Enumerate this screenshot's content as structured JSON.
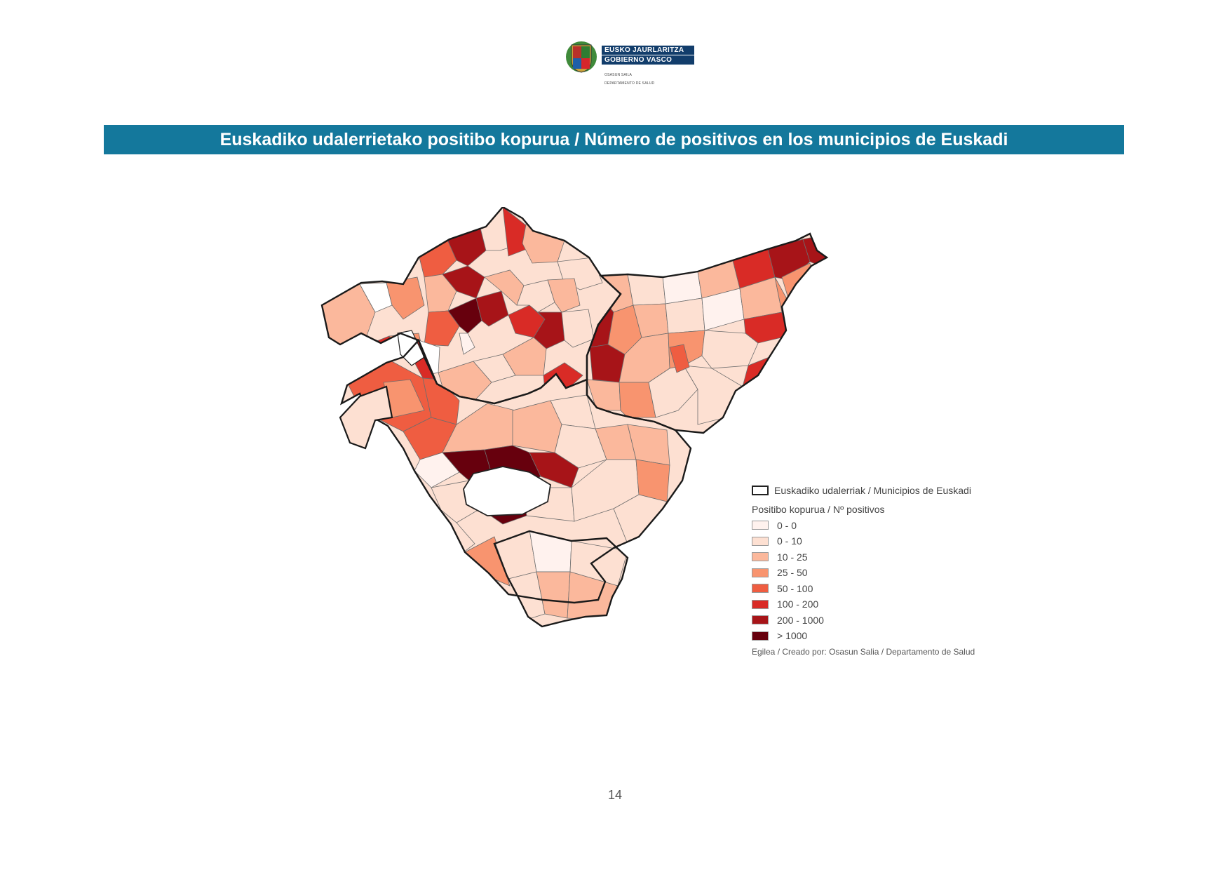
{
  "header": {
    "logo": {
      "line1": "EUSKO JAURLARITZA",
      "line2": "GOBIERNO VASCO",
      "dept1": "OSASUN SAILA",
      "dept2": "DEPARTAMENTO DE SALUD"
    },
    "title": "Euskadiko udalerrietako positibo kopurua / Número de positivos en los municipios de Euskadi"
  },
  "legend": {
    "outline_label": "Euskadiko udalerriak / Municipios de Euskadi",
    "heading": "Positibo kopurua / Nº positivos",
    "classes": [
      {
        "label": "0 - 0",
        "color": "#fff2ee"
      },
      {
        "label": "0 - 10",
        "color": "#fde0d2"
      },
      {
        "label": "10 - 25",
        "color": "#fbb89c"
      },
      {
        "label": "25 - 50",
        "color": "#f8946f"
      },
      {
        "label": "50 - 100",
        "color": "#ef5d41"
      },
      {
        "label": "100 - 200",
        "color": "#d92b26"
      },
      {
        "label": "200 - 1000",
        "color": "#a71418"
      },
      {
        "label": "> 1000",
        "color": "#67000d"
      }
    ],
    "credit": "Egilea / Creado por: Osasun Salia / Departamento de Salud"
  },
  "page_number": "14"
}
